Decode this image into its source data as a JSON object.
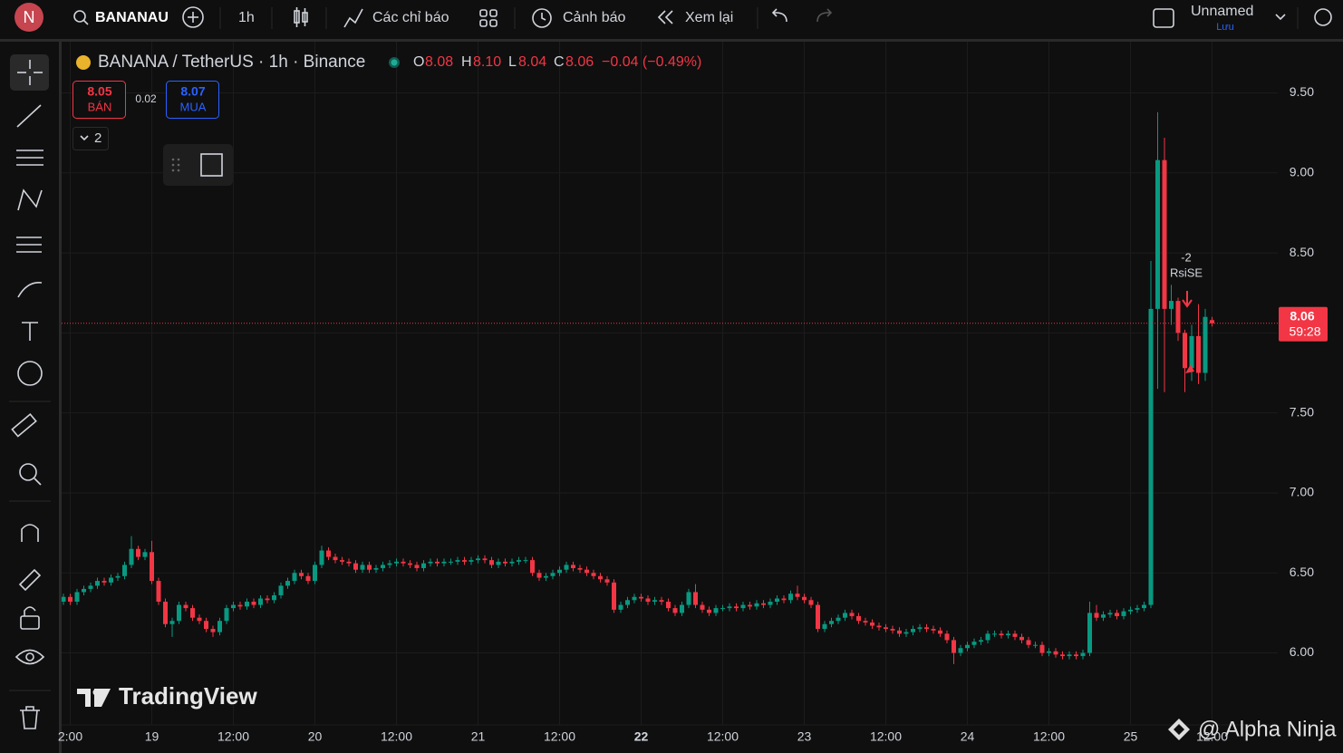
{
  "toolbar": {
    "avatar": "N",
    "symbol": "BANANAU",
    "interval": "1h",
    "indicators": "Các chỉ báo",
    "alerts": "Cảnh báo",
    "replay": "Xem lại",
    "layout_name": "Unnamed",
    "save": "Lưu"
  },
  "trade_panel": {
    "sell_price": "8.05",
    "sell": "BÁN",
    "spread": "0.02",
    "buy_price": "8.07",
    "buy": "MUA",
    "collapse_count": "2"
  },
  "legend": {
    "o": "O",
    "o_value": "8.08",
    "h": "H",
    "h_value": "8.10",
    "l": "L",
    "l_value": "8.04",
    "c": "C",
    "c_value": "8.06",
    "change": "−0.04 (−0.49%)"
  },
  "watermark": {
    "brand": "TradingView",
    "credit": "@ Alpha Ninja"
  },
  "chart_data": {
    "type": "candlestick",
    "title": "BANANA / TetherUS · 1h · Binance",
    "categories": [
      null,
      "2:00",
      null,
      null,
      null,
      null,
      null,
      null,
      null,
      null,
      null,
      null,
      null,
      "19",
      null,
      null,
      null,
      null,
      null,
      null,
      null,
      null,
      null,
      null,
      null,
      "12:00",
      null,
      null,
      null,
      null,
      null,
      null,
      null,
      null,
      null,
      null,
      null,
      "20",
      null,
      null,
      null,
      null,
      null,
      null,
      null,
      null,
      null,
      null,
      null,
      "12:00",
      null,
      null,
      null,
      null,
      null,
      null,
      null,
      null,
      null,
      null,
      null,
      "21",
      null,
      null,
      null,
      null,
      null,
      null,
      null,
      null,
      null,
      null,
      null,
      "12:00",
      null,
      null,
      null,
      null,
      null,
      null,
      null,
      null,
      null,
      null,
      null,
      "22",
      null,
      null,
      null,
      null,
      null,
      null,
      null,
      null,
      null,
      null,
      null,
      "12:00",
      null,
      null,
      null,
      null,
      null,
      null,
      null,
      null,
      null,
      null,
      null,
      "23",
      null,
      null,
      null,
      null,
      null,
      null,
      null,
      null,
      null,
      null,
      null,
      "12:00",
      null,
      null,
      null,
      null,
      null,
      null,
      null,
      null,
      null,
      null,
      null,
      "24",
      null,
      null,
      null,
      null,
      null,
      null,
      null,
      null,
      null,
      null,
      null,
      "12:00",
      null,
      null,
      null,
      null,
      null,
      null,
      null,
      null,
      null,
      null,
      null,
      "25",
      null,
      null,
      null,
      null,
      null,
      null,
      null,
      null,
      null,
      null,
      null,
      "12:00"
    ],
    "open": [
      6.32,
      6.35,
      6.32,
      6.38,
      6.4,
      6.42,
      6.45,
      6.44,
      6.47,
      6.48,
      6.55,
      6.65,
      6.6,
      6.63,
      6.45,
      6.32,
      6.18,
      6.2,
      6.3,
      6.28,
      6.22,
      6.2,
      6.15,
      6.13,
      6.2,
      6.28,
      6.3,
      6.29,
      6.32,
      6.3,
      6.34,
      6.33,
      6.36,
      6.42,
      6.45,
      6.5,
      6.48,
      6.45,
      6.55,
      6.64,
      6.6,
      6.58,
      6.57,
      6.56,
      6.52,
      6.55,
      6.52,
      6.53,
      6.55,
      6.56,
      6.57,
      6.56,
      6.55,
      6.53,
      6.56,
      6.57,
      6.56,
      6.57,
      6.57,
      6.58,
      6.57,
      6.58,
      6.59,
      6.58,
      6.55,
      6.57,
      6.56,
      6.57,
      6.58,
      6.58,
      6.5,
      6.47,
      6.48,
      6.5,
      6.52,
      6.55,
      6.53,
      6.52,
      6.5,
      6.48,
      6.46,
      6.44,
      6.27,
      6.3,
      6.33,
      6.35,
      6.34,
      6.32,
      6.33,
      6.32,
      6.28,
      6.25,
      6.3,
      6.38,
      6.3,
      6.27,
      6.25,
      6.28,
      6.28,
      6.29,
      6.28,
      6.3,
      6.29,
      6.31,
      6.3,
      6.32,
      6.34,
      6.33,
      6.37,
      6.35,
      6.33,
      6.3,
      6.15,
      6.18,
      6.2,
      6.22,
      6.25,
      6.23,
      6.2,
      6.19,
      6.17,
      6.16,
      6.15,
      6.14,
      6.12,
      6.13,
      6.15,
      6.16,
      6.15,
      6.14,
      6.12,
      6.08,
      6.0,
      6.03,
      6.05,
      6.07,
      6.08,
      6.12,
      6.12,
      6.11,
      6.12,
      6.1,
      6.08,
      6.05,
      6.05,
      6.0,
      6.01,
      5.99,
      5.98,
      5.99,
      5.98,
      6.0,
      6.25,
      6.22,
      6.24,
      6.25,
      6.23,
      6.26,
      6.27,
      6.28,
      6.3,
      8.15,
      9.08,
      8.15,
      8.2,
      8.0,
      7.78,
      7.98,
      7.75,
      8.08
    ],
    "high": [
      6.37,
      6.37,
      6.4,
      6.42,
      6.44,
      6.47,
      6.47,
      6.49,
      6.5,
      6.57,
      6.73,
      6.67,
      6.65,
      6.7,
      6.47,
      6.34,
      6.22,
      6.32,
      6.32,
      6.3,
      6.24,
      6.22,
      6.17,
      6.22,
      6.3,
      6.32,
      6.32,
      6.34,
      6.34,
      6.36,
      6.36,
      6.38,
      6.44,
      6.47,
      6.52,
      6.52,
      6.5,
      6.57,
      6.67,
      6.66,
      6.62,
      6.6,
      6.59,
      6.58,
      6.57,
      6.57,
      6.55,
      6.57,
      6.58,
      6.59,
      6.59,
      6.58,
      6.57,
      6.58,
      6.59,
      6.59,
      6.59,
      6.59,
      6.6,
      6.6,
      6.6,
      6.61,
      6.61,
      6.6,
      6.59,
      6.59,
      6.59,
      6.6,
      6.6,
      6.6,
      6.52,
      6.5,
      6.52,
      6.54,
      6.57,
      6.57,
      6.55,
      6.54,
      6.52,
      6.5,
      6.48,
      6.46,
      6.32,
      6.35,
      6.37,
      6.37,
      6.36,
      6.35,
      6.35,
      6.34,
      6.3,
      6.32,
      6.4,
      6.43,
      6.32,
      6.29,
      6.3,
      6.3,
      6.31,
      6.31,
      6.32,
      6.32,
      6.33,
      6.33,
      6.34,
      6.36,
      6.36,
      6.39,
      6.42,
      6.37,
      6.35,
      6.32,
      6.2,
      6.22,
      6.24,
      6.27,
      6.27,
      6.25,
      6.22,
      6.21,
      6.19,
      6.18,
      6.17,
      6.16,
      6.15,
      6.17,
      6.18,
      6.18,
      6.17,
      6.16,
      6.14,
      6.1,
      6.05,
      6.07,
      6.09,
      6.1,
      6.14,
      6.14,
      6.14,
      6.14,
      6.14,
      6.12,
      6.1,
      6.07,
      6.07,
      6.03,
      6.03,
      6.01,
      6.01,
      6.01,
      6.02,
      6.32,
      6.3,
      6.26,
      6.27,
      6.27,
      6.28,
      6.29,
      6.3,
      6.32,
      8.45,
      9.38,
      9.22,
      8.3,
      8.22,
      8.02,
      8.05,
      8.18,
      8.15,
      8.1
    ],
    "low": [
      6.3,
      6.3,
      6.3,
      6.36,
      6.38,
      6.4,
      6.42,
      6.42,
      6.45,
      6.46,
      6.53,
      6.58,
      6.58,
      6.43,
      6.3,
      6.16,
      6.1,
      6.18,
      6.26,
      6.2,
      6.18,
      6.13,
      6.1,
      6.11,
      6.18,
      6.26,
      6.27,
      6.27,
      6.28,
      6.28,
      6.31,
      6.31,
      6.34,
      6.4,
      6.43,
      6.46,
      6.43,
      6.43,
      6.53,
      6.58,
      6.56,
      6.55,
      6.54,
      6.5,
      6.5,
      6.5,
      6.5,
      6.51,
      6.53,
      6.54,
      6.54,
      6.53,
      6.51,
      6.51,
      6.54,
      6.54,
      6.54,
      6.55,
      6.55,
      6.55,
      6.55,
      6.56,
      6.56,
      6.53,
      6.53,
      6.54,
      6.54,
      6.55,
      6.56,
      6.48,
      6.45,
      6.45,
      6.46,
      6.48,
      6.5,
      6.51,
      6.5,
      6.48,
      6.46,
      6.44,
      6.42,
      6.25,
      6.25,
      6.28,
      6.31,
      6.32,
      6.3,
      6.3,
      6.3,
      6.26,
      6.23,
      6.23,
      6.28,
      6.28,
      6.25,
      6.23,
      6.23,
      6.26,
      6.26,
      6.26,
      6.26,
      6.27,
      6.27,
      6.28,
      6.28,
      6.3,
      6.31,
      6.31,
      6.33,
      6.31,
      6.28,
      6.13,
      6.13,
      6.16,
      6.18,
      6.2,
      6.21,
      6.18,
      6.17,
      6.15,
      6.14,
      6.13,
      6.12,
      6.1,
      6.1,
      6.11,
      6.13,
      6.13,
      6.12,
      6.1,
      6.06,
      5.93,
      5.98,
      6.01,
      6.03,
      6.05,
      6.06,
      6.1,
      6.09,
      6.09,
      6.08,
      6.06,
      6.03,
      6.03,
      5.98,
      5.98,
      5.97,
      5.96,
      5.96,
      5.96,
      5.96,
      5.98,
      6.2,
      6.2,
      6.22,
      6.21,
      6.21,
      6.24,
      6.25,
      6.26,
      6.28,
      7.65,
      7.63,
      8.05,
      7.95,
      7.63,
      7.7,
      7.68,
      7.7,
      8.04
    ],
    "close": [
      6.35,
      6.32,
      6.38,
      6.4,
      6.42,
      6.45,
      6.44,
      6.47,
      6.48,
      6.55,
      6.65,
      6.6,
      6.63,
      6.45,
      6.32,
      6.18,
      6.2,
      6.3,
      6.28,
      6.22,
      6.2,
      6.15,
      6.13,
      6.2,
      6.28,
      6.3,
      6.29,
      6.32,
      6.3,
      6.34,
      6.33,
      6.36,
      6.42,
      6.45,
      6.5,
      6.48,
      6.45,
      6.55,
      6.64,
      6.6,
      6.58,
      6.57,
      6.56,
      6.52,
      6.55,
      6.52,
      6.53,
      6.55,
      6.56,
      6.57,
      6.56,
      6.55,
      6.53,
      6.56,
      6.57,
      6.56,
      6.57,
      6.57,
      6.58,
      6.57,
      6.58,
      6.59,
      6.58,
      6.55,
      6.57,
      6.56,
      6.57,
      6.58,
      6.58,
      6.5,
      6.47,
      6.48,
      6.5,
      6.52,
      6.55,
      6.53,
      6.52,
      6.5,
      6.48,
      6.46,
      6.44,
      6.27,
      6.3,
      6.33,
      6.35,
      6.34,
      6.32,
      6.33,
      6.32,
      6.28,
      6.25,
      6.3,
      6.38,
      6.3,
      6.27,
      6.25,
      6.28,
      6.28,
      6.29,
      6.28,
      6.3,
      6.29,
      6.31,
      6.3,
      6.32,
      6.34,
      6.33,
      6.37,
      6.35,
      6.33,
      6.3,
      6.15,
      6.18,
      6.2,
      6.22,
      6.25,
      6.23,
      6.2,
      6.19,
      6.17,
      6.16,
      6.15,
      6.14,
      6.12,
      6.13,
      6.15,
      6.16,
      6.15,
      6.14,
      6.12,
      6.08,
      6.0,
      6.03,
      6.05,
      6.07,
      6.08,
      6.12,
      6.12,
      6.11,
      6.12,
      6.1,
      6.08,
      6.05,
      6.05,
      6.0,
      6.01,
      5.99,
      5.98,
      5.99,
      5.98,
      6.0,
      6.25,
      6.22,
      6.24,
      6.25,
      6.23,
      6.26,
      6.27,
      6.28,
      6.3,
      8.15,
      9.08,
      8.15,
      8.2,
      8.0,
      7.78,
      7.98,
      7.75,
      8.1,
      8.06
    ],
    "up_color": "#089981",
    "down_color": "#f23645",
    "ylim": [
      5.55,
      9.82
    ],
    "yticks": [
      {
        "value": 6,
        "label": "6.00"
      },
      {
        "value": 6.5,
        "label": "6.50"
      },
      {
        "value": 7,
        "label": "7.00"
      },
      {
        "value": 7.5,
        "label": "7.50"
      },
      {
        "value": 8,
        "label": "8.00"
      },
      {
        "value": 8.5,
        "label": "8.50"
      },
      {
        "value": 9,
        "label": "9.00"
      },
      {
        "value": 9.5,
        "label": "9.50"
      }
    ],
    "grid": true,
    "last_price_label": "8.06",
    "countdown": "59:28",
    "annotations": [
      "-2",
      "RsiSE"
    ]
  }
}
